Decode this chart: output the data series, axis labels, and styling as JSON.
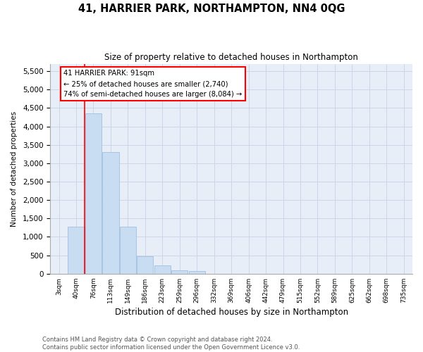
{
  "title": "41, HARRIER PARK, NORTHAMPTON, NN4 0QG",
  "subtitle": "Size of property relative to detached houses in Northampton",
  "xlabel": "Distribution of detached houses by size in Northampton",
  "ylabel": "Number of detached properties",
  "bar_color": "#c9ddf2",
  "bar_edge_color": "#a0bfe0",
  "categories": [
    "3sqm",
    "40sqm",
    "76sqm",
    "113sqm",
    "149sqm",
    "186sqm",
    "223sqm",
    "259sqm",
    "296sqm",
    "332sqm",
    "369sqm",
    "406sqm",
    "442sqm",
    "479sqm",
    "515sqm",
    "552sqm",
    "589sqm",
    "625sqm",
    "662sqm",
    "698sqm",
    "735sqm"
  ],
  "values": [
    0,
    1270,
    4350,
    3300,
    1270,
    480,
    230,
    100,
    70,
    0,
    0,
    0,
    0,
    0,
    0,
    0,
    0,
    0,
    0,
    0,
    0
  ],
  "ylim": [
    0,
    5700
  ],
  "yticks": [
    0,
    500,
    1000,
    1500,
    2000,
    2500,
    3000,
    3500,
    4000,
    4500,
    5000,
    5500
  ],
  "red_line_bin": 2,
  "annotation_text_line1": "41 HARRIER PARK: 91sqm",
  "annotation_text_line2": "← 25% of detached houses are smaller (2,740)",
  "annotation_text_line3": "74% of semi-detached houses are larger (8,084) →",
  "footer_line1": "Contains HM Land Registry data © Crown copyright and database right 2024.",
  "footer_line2": "Contains public sector information licensed under the Open Government Licence v3.0.",
  "grid_color": "#cdd6e8",
  "background_color": "#e8eef8"
}
